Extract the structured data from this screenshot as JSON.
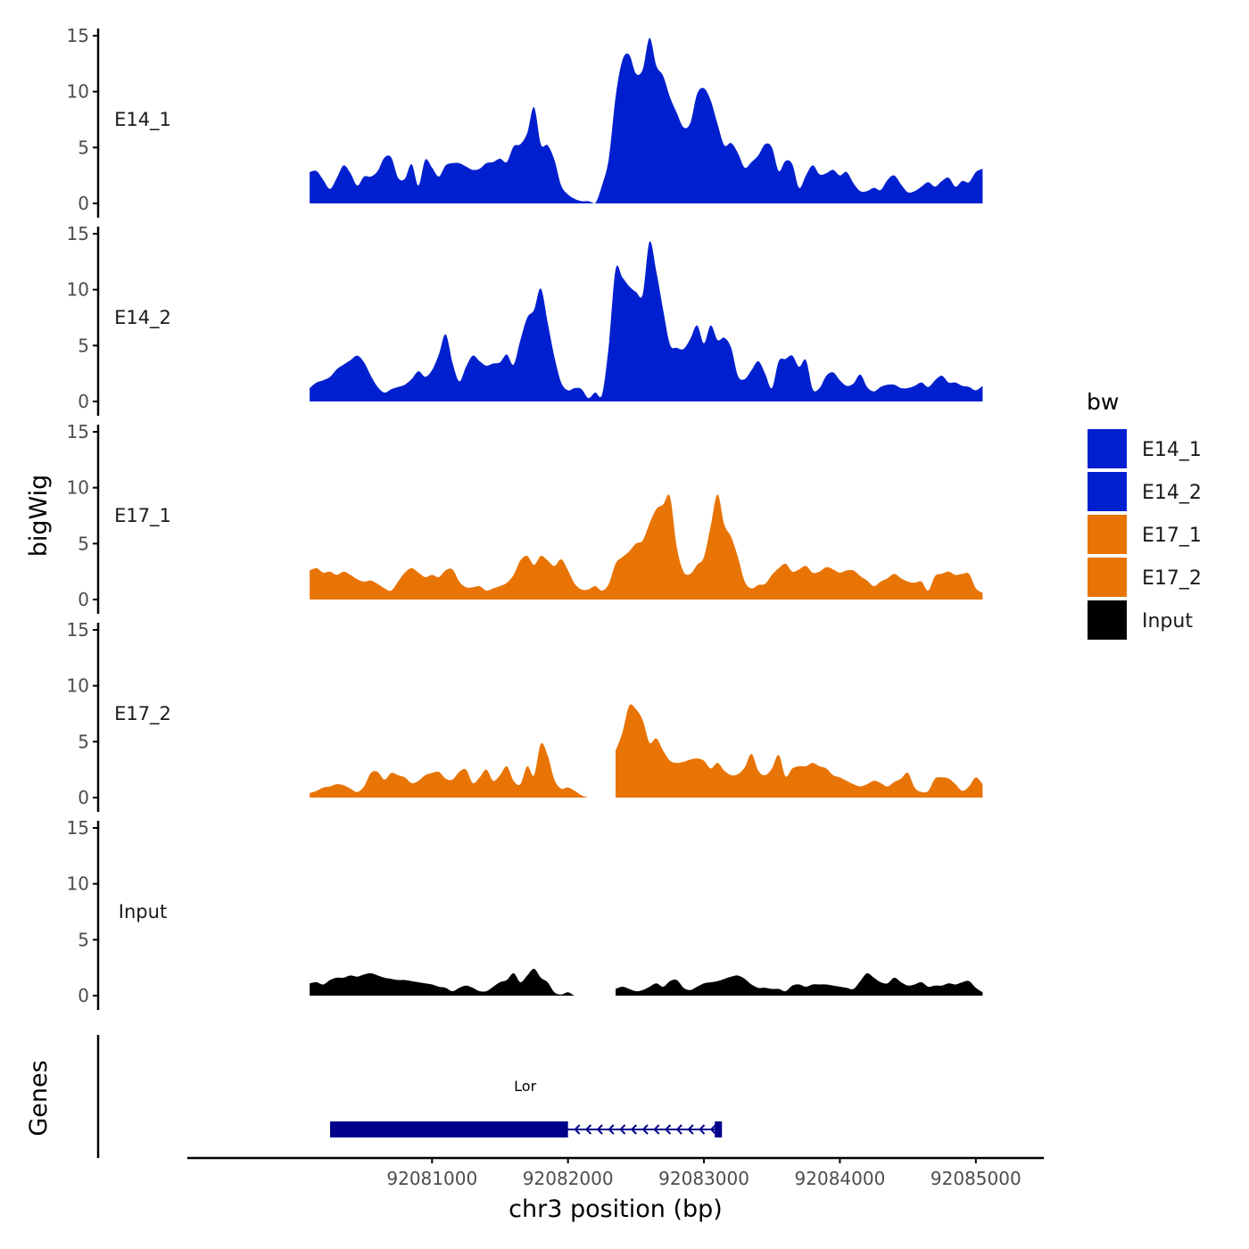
{
  "chart_data": {
    "type": "area",
    "title": "",
    "xlabel": "chr3 position (bp)",
    "ylabel": "bigWig",
    "genes_label": "Genes",
    "xlim": [
      92079200,
      92085500
    ],
    "ylim": [
      0,
      15
    ],
    "x_ticks": [
      92081000,
      92082000,
      92083000,
      92084000,
      92085000
    ],
    "y_ticks": [
      0,
      5,
      10,
      15
    ],
    "legend": {
      "title": "bw",
      "position": "right",
      "entries": [
        "E14_1",
        "E14_2",
        "E17_1",
        "E17_2",
        "Input"
      ]
    },
    "colors": {
      "E14_1": "#0020cf",
      "E14_2": "#0020cf",
      "E17_1": "#e87406",
      "E17_2": "#e87406",
      "Input": "#000000",
      "gene": "#00008b",
      "axis": "#000000"
    },
    "series": [
      {
        "name": "E14_1",
        "x": [
          92080100,
          92080150,
          92080200,
          92080250,
          92080300,
          92080350,
          92080400,
          92080450,
          92080500,
          92080550,
          92080600,
          92080650,
          92080700,
          92080750,
          92080800,
          92080850,
          92080900,
          92080950,
          92081000,
          92081050,
          92081100,
          92081150,
          92081200,
          92081250,
          92081300,
          92081350,
          92081400,
          92081450,
          92081500,
          92081550,
          92081600,
          92081650,
          92081700,
          92081750,
          92081800,
          92081850,
          92081900,
          92081950,
          92082000,
          92082050,
          92082100,
          92082150,
          92082200,
          92082250,
          92082300,
          92082350,
          92082400,
          92082450,
          92082500,
          92082550,
          92082600,
          92082650,
          92082700,
          92082750,
          92082800,
          92082850,
          92082900,
          92082950,
          92083000,
          92083050,
          92083100,
          92083150,
          92083200,
          92083250,
          92083300,
          92083350,
          92083400,
          92083450,
          92083500,
          92083550,
          92083600,
          92083650,
          92083700,
          92083750,
          92083800,
          92083850,
          92083900,
          92083950,
          92084000,
          92084050,
          92084100,
          92084150,
          92084200,
          92084250,
          92084300,
          92084350,
          92084400,
          92084450,
          92084500,
          92084550,
          92084600,
          92084650,
          92084700,
          92084750,
          92084800,
          92084850,
          92084900,
          92084950,
          92085000,
          92085050
        ],
        "values": [
          2.8,
          2.9,
          2.1,
          1.3,
          2.3,
          3.4,
          2.7,
          1.6,
          2.4,
          2.4,
          2.9,
          4.1,
          4.1,
          2.3,
          2.2,
          3.5,
          1.6,
          3.9,
          3.2,
          2.4,
          3.4,
          3.6,
          3.6,
          3.3,
          3.0,
          3.1,
          3.6,
          3.7,
          4.0,
          3.7,
          5.1,
          5.3,
          6.3,
          8.6,
          5.3,
          5.2,
          3.9,
          1.6,
          0.8,
          0.4,
          0.2,
          0.2,
          0.0,
          1.6,
          4.0,
          9.5,
          12.8,
          13.3,
          11.6,
          12.0,
          14.8,
          12.3,
          11.4,
          9.5,
          8.1,
          6.8,
          7.2,
          9.8,
          10.3,
          9.2,
          7.1,
          5.2,
          5.4,
          4.5,
          3.2,
          3.7,
          4.3,
          5.3,
          5.0,
          2.9,
          3.8,
          3.5,
          1.4,
          2.5,
          3.4,
          2.6,
          2.7,
          3.0,
          2.5,
          2.8,
          1.8,
          1.1,
          1.1,
          1.4,
          1.2,
          2.1,
          2.5,
          1.7,
          1.0,
          1.1,
          1.5,
          1.9,
          1.5,
          2.0,
          2.3,
          1.5,
          2.0,
          1.9,
          2.8,
          3.1
        ],
        "gaps": []
      },
      {
        "name": "E14_2",
        "x": [
          92080100,
          92080150,
          92080200,
          92080250,
          92080300,
          92080350,
          92080400,
          92080450,
          92080500,
          92080550,
          92080600,
          92080650,
          92080700,
          92080750,
          92080800,
          92080850,
          92080900,
          92080950,
          92081000,
          92081050,
          92081100,
          92081150,
          92081200,
          92081250,
          92081300,
          92081350,
          92081400,
          92081450,
          92081500,
          92081550,
          92081600,
          92081650,
          92081700,
          92081750,
          92081800,
          92081850,
          92081900,
          92081950,
          92082000,
          92082050,
          92082100,
          92082150,
          92082200,
          92082250,
          92082300,
          92082350,
          92082400,
          92082450,
          92082500,
          92082550,
          92082600,
          92082650,
          92082700,
          92082750,
          92082800,
          92082850,
          92082900,
          92082950,
          92083000,
          92083050,
          92083100,
          92083150,
          92083200,
          92083250,
          92083300,
          92083350,
          92083400,
          92083450,
          92083500,
          92083550,
          92083600,
          92083650,
          92083700,
          92083750,
          92083800,
          92083850,
          92083900,
          92083950,
          92084000,
          92084050,
          92084100,
          92084150,
          92084200,
          92084250,
          92084300,
          92084350,
          92084400,
          92084450,
          92084500,
          92084550,
          92084600,
          92084650,
          92084700,
          92084750,
          92084800,
          92084850,
          92084900,
          92084950,
          92085000,
          92085050
        ],
        "values": [
          1.2,
          1.7,
          1.9,
          2.2,
          2.9,
          3.3,
          3.7,
          4.1,
          3.5,
          2.3,
          1.3,
          0.8,
          1.1,
          1.3,
          1.5,
          2.0,
          2.7,
          2.2,
          2.8,
          4.2,
          6.0,
          3.5,
          1.8,
          3.1,
          4.1,
          3.6,
          3.2,
          3.4,
          3.5,
          4.2,
          3.3,
          5.5,
          7.5,
          8.2,
          10.1,
          7.1,
          4.0,
          1.7,
          1.0,
          1.2,
          1.1,
          0.3,
          0.8,
          0.6,
          5.0,
          11.8,
          11.1,
          10.3,
          9.8,
          9.6,
          14.3,
          11.6,
          8.2,
          5.1,
          4.8,
          4.7,
          5.6,
          6.8,
          5.2,
          6.8,
          5.5,
          5.7,
          4.8,
          2.3,
          2.0,
          2.8,
          3.6,
          2.5,
          1.2,
          3.6,
          3.8,
          4.1,
          3.1,
          3.7,
          1.1,
          1.2,
          2.3,
          2.6,
          1.9,
          1.4,
          1.6,
          2.4,
          1.3,
          0.9,
          1.3,
          1.5,
          1.5,
          1.2,
          1.2,
          1.4,
          1.7,
          1.3,
          1.9,
          2.3,
          1.7,
          1.7,
          1.4,
          1.3,
          1.0,
          1.4
        ],
        "gaps": []
      },
      {
        "name": "E17_1",
        "x": [
          92080100,
          92080150,
          92080200,
          92080250,
          92080300,
          92080350,
          92080400,
          92080450,
          92080500,
          92080550,
          92080600,
          92080650,
          92080700,
          92080750,
          92080800,
          92080850,
          92080900,
          92080950,
          92081000,
          92081050,
          92081100,
          92081150,
          92081200,
          92081250,
          92081300,
          92081350,
          92081400,
          92081450,
          92081500,
          92081550,
          92081600,
          92081650,
          92081700,
          92081750,
          92081800,
          92081850,
          92081900,
          92081950,
          92082000,
          92082050,
          92082100,
          92082150,
          92082200,
          92082250,
          92082300,
          92082350,
          92082400,
          92082450,
          92082500,
          92082550,
          92082600,
          92082650,
          92082700,
          92082750,
          92082800,
          92082850,
          92082900,
          92082950,
          92083000,
          92083050,
          92083100,
          92083150,
          92083200,
          92083250,
          92083300,
          92083350,
          92083400,
          92083450,
          92083500,
          92083550,
          92083600,
          92083650,
          92083700,
          92083750,
          92083800,
          92083850,
          92083900,
          92083950,
          92084000,
          92084050,
          92084100,
          92084150,
          92084200,
          92084250,
          92084300,
          92084350,
          92084400,
          92084450,
          92084500,
          92084550,
          92084600,
          92084650,
          92084700,
          92084750,
          92084800,
          92084850,
          92084900,
          92084950,
          92085000,
          92085050
        ],
        "values": [
          2.6,
          2.8,
          2.4,
          2.5,
          2.2,
          2.5,
          2.2,
          1.8,
          1.6,
          1.7,
          1.4,
          1.0,
          0.8,
          1.6,
          2.4,
          2.8,
          2.4,
          2.0,
          2.2,
          2.0,
          2.6,
          2.7,
          1.6,
          1.1,
          1.1,
          1.2,
          0.8,
          1.0,
          1.2,
          1.5,
          2.2,
          3.5,
          3.9,
          3.1,
          3.9,
          3.5,
          3.0,
          3.6,
          2.6,
          1.4,
          0.9,
          0.9,
          1.2,
          0.8,
          1.4,
          3.2,
          3.8,
          4.3,
          5.0,
          5.3,
          6.8,
          8.1,
          8.5,
          9.2,
          4.7,
          2.5,
          2.3,
          3.1,
          3.8,
          6.6,
          9.4,
          6.7,
          5.6,
          3.8,
          1.6,
          1.0,
          1.3,
          1.4,
          2.2,
          2.8,
          3.2,
          2.5,
          2.7,
          3.0,
          2.4,
          2.5,
          2.9,
          2.7,
          2.4,
          2.6,
          2.6,
          2.1,
          1.7,
          1.2,
          1.6,
          1.9,
          2.3,
          1.9,
          1.6,
          1.5,
          1.6,
          0.8,
          2.1,
          2.3,
          2.5,
          2.2,
          2.3,
          2.3,
          1.0,
          0.6
        ],
        "gaps": []
      },
      {
        "name": "E17_2",
        "x": [
          92080100,
          92080150,
          92080200,
          92080250,
          92080300,
          92080350,
          92080400,
          92080450,
          92080500,
          92080550,
          92080600,
          92080650,
          92080700,
          92080750,
          92080800,
          92080850,
          92080900,
          92080950,
          92081000,
          92081050,
          92081100,
          92081150,
          92081200,
          92081250,
          92081300,
          92081350,
          92081400,
          92081450,
          92081500,
          92081550,
          92081600,
          92081650,
          92081700,
          92081750,
          92081800,
          92081850,
          92081900,
          92081950,
          92082000,
          92082050,
          92082100,
          92082150,
          92082200,
          92082250,
          92082300,
          92082350,
          92082400,
          92082450,
          92082500,
          92082550,
          92082600,
          92082650,
          92082700,
          92082750,
          92082800,
          92082850,
          92082900,
          92082950,
          92083000,
          92083050,
          92083100,
          92083150,
          92083200,
          92083250,
          92083300,
          92083350,
          92083400,
          92083450,
          92083500,
          92083550,
          92083600,
          92083650,
          92083700,
          92083750,
          92083800,
          92083850,
          92083900,
          92083950,
          92084000,
          92084050,
          92084100,
          92084150,
          92084200,
          92084250,
          92084300,
          92084350,
          92084400,
          92084450,
          92084500,
          92084550,
          92084600,
          92084650,
          92084700,
          92084750,
          92084800,
          92084850,
          92084900,
          92084950,
          92085000,
          92085050
        ],
        "values": [
          0.4,
          0.6,
          0.9,
          1.0,
          1.2,
          1.1,
          0.8,
          0.5,
          1.0,
          2.2,
          2.3,
          1.6,
          2.2,
          2.0,
          1.8,
          1.3,
          1.5,
          2.0,
          2.2,
          2.3,
          1.7,
          1.6,
          2.3,
          2.5,
          1.3,
          1.8,
          2.5,
          1.5,
          2.0,
          2.8,
          1.5,
          1.2,
          2.8,
          2.0,
          4.8,
          3.8,
          1.6,
          0.8,
          0.9,
          0.6,
          0.2,
          0.0,
          0.0,
          0.1,
          0.2,
          4.2,
          5.8,
          8.2,
          7.9,
          6.9,
          4.9,
          5.3,
          4.2,
          3.3,
          3.1,
          3.2,
          3.4,
          3.5,
          3.3,
          2.6,
          3.1,
          2.4,
          2.0,
          2.1,
          2.7,
          3.9,
          2.4,
          2.0,
          2.6,
          3.8,
          1.9,
          2.6,
          2.8,
          2.8,
          3.1,
          2.8,
          2.6,
          2.0,
          1.8,
          1.5,
          1.2,
          1.0,
          1.2,
          1.5,
          1.3,
          1.0,
          1.4,
          1.7,
          2.2,
          0.9,
          0.5,
          0.6,
          1.7,
          1.8,
          1.7,
          1.2,
          0.6,
          1.0,
          1.8,
          1.2
        ],
        "gaps": [
          [
            92082200,
            92082350
          ]
        ]
      },
      {
        "name": "Input",
        "x": [
          92080100,
          92080150,
          92080200,
          92080250,
          92080300,
          92080350,
          92080400,
          92080450,
          92080500,
          92080550,
          92080600,
          92080650,
          92080700,
          92080750,
          92080800,
          92080850,
          92080900,
          92080950,
          92081000,
          92081050,
          92081100,
          92081150,
          92081200,
          92081250,
          92081300,
          92081350,
          92081400,
          92081450,
          92081500,
          92081550,
          92081600,
          92081650,
          92081700,
          92081750,
          92081800,
          92081850,
          92081900,
          92081950,
          92082000,
          92082050,
          92082100,
          92082150,
          92082200,
          92082250,
          92082300,
          92082350,
          92082400,
          92082450,
          92082500,
          92082550,
          92082600,
          92082650,
          92082700,
          92082750,
          92082800,
          92082850,
          92082900,
          92082950,
          92083000,
          92083050,
          92083100,
          92083150,
          92083200,
          92083250,
          92083300,
          92083350,
          92083400,
          92083450,
          92083500,
          92083550,
          92083600,
          92083650,
          92083700,
          92083750,
          92083800,
          92083850,
          92083900,
          92083950,
          92084000,
          92084050,
          92084100,
          92084150,
          92084200,
          92084250,
          92084300,
          92084350,
          92084400,
          92084450,
          92084500,
          92084550,
          92084600,
          92084650,
          92084700,
          92084750,
          92084800,
          92084850,
          92084900,
          92084950,
          92085000,
          92085050
        ],
        "values": [
          1.1,
          1.2,
          1.0,
          1.4,
          1.6,
          1.6,
          1.8,
          1.7,
          1.9,
          2.0,
          1.8,
          1.6,
          1.5,
          1.4,
          1.4,
          1.3,
          1.2,
          1.1,
          1.0,
          0.8,
          0.7,
          0.4,
          0.7,
          0.9,
          0.7,
          0.4,
          0.4,
          0.8,
          1.2,
          1.4,
          2.0,
          1.2,
          1.8,
          2.4,
          1.6,
          1.2,
          0.3,
          0.1,
          0.3,
          0.0,
          0.0,
          0.0,
          0.0,
          0.0,
          0.2,
          0.6,
          0.8,
          0.6,
          0.4,
          0.5,
          0.8,
          1.1,
          0.8,
          1.3,
          1.4,
          0.7,
          0.5,
          0.8,
          1.1,
          1.2,
          1.3,
          1.5,
          1.7,
          1.8,
          1.5,
          1.0,
          0.7,
          0.7,
          0.6,
          0.6,
          0.4,
          0.9,
          1.0,
          0.8,
          1.0,
          1.0,
          1.0,
          0.9,
          0.8,
          0.7,
          0.6,
          1.3,
          2.0,
          1.6,
          1.2,
          1.1,
          1.6,
          1.2,
          0.9,
          1.0,
          1.2,
          0.8,
          0.9,
          0.9,
          1.1,
          1.0,
          1.2,
          1.3,
          0.7,
          0.3
        ],
        "gaps": [
          [
            92082200,
            92082350
          ]
        ]
      }
    ],
    "gene": {
      "name": "Lor",
      "strand": "-",
      "start": 92080250,
      "end": 92083120,
      "thick_start": 92080250,
      "thick_end": 92082000,
      "exon_start": 92083080,
      "exon_end": 92083120
    }
  }
}
